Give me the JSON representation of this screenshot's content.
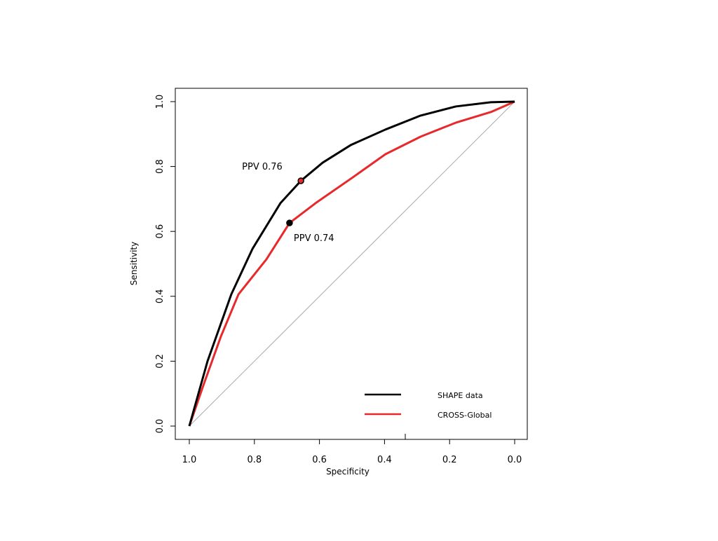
{
  "chart_data": {
    "type": "line",
    "title": "",
    "xlabel": "Specificity",
    "ylabel": "Sensitivity",
    "xlim": [
      1.0,
      0.0
    ],
    "ylim": [
      0.0,
      1.0
    ],
    "xticks": [
      "1.0",
      "0.8",
      "0.6",
      "0.4",
      "0.2",
      "0.0"
    ],
    "yticks": [
      "0.0",
      "0.2",
      "0.4",
      "0.6",
      "0.8",
      "1.0"
    ],
    "grid": false,
    "legend": {
      "placement": "bottom-right"
    },
    "series": [
      {
        "name": "SHAPE data",
        "color": "#000000",
        "x": [
          1.0,
          0.944,
          0.871,
          0.806,
          0.72,
          0.657,
          0.59,
          0.504,
          0.397,
          0.289,
          0.181,
          0.073,
          0.0
        ],
        "y": [
          0.0,
          0.2,
          0.406,
          0.546,
          0.687,
          0.756,
          0.812,
          0.866,
          0.914,
          0.957,
          0.985,
          0.998,
          1.0
        ]
      },
      {
        "name": "CROSS-Global",
        "color": "#e8292b",
        "x": [
          1.0,
          0.957,
          0.903,
          0.849,
          0.763,
          0.692,
          0.612,
          0.504,
          0.397,
          0.289,
          0.181,
          0.073,
          0.0
        ],
        "y": [
          0.0,
          0.125,
          0.276,
          0.406,
          0.514,
          0.626,
          0.687,
          0.762,
          0.838,
          0.892,
          0.935,
          0.968,
          1.0
        ]
      }
    ],
    "reference_line": {
      "color": "#aaaaaa",
      "from": [
        1.0,
        0.0
      ],
      "to": [
        0.0,
        1.0
      ]
    },
    "annotations": [
      {
        "text": "PPV 0.76",
        "x": 0.657,
        "y": 0.756,
        "marker_fill": "#e8292b",
        "marker_edge": "#000000"
      },
      {
        "text": "PPV 0.74",
        "x": 0.692,
        "y": 0.626,
        "marker_fill": "#000000",
        "marker_edge": "#000000"
      }
    ]
  }
}
